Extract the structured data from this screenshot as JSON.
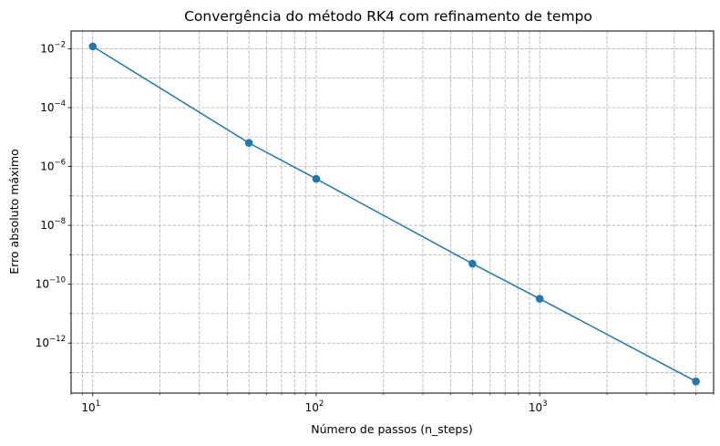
{
  "chart_data": {
    "type": "line",
    "title": "Convergência do método RK4 com refinamento de tempo",
    "xlabel": "Número de passos (n_steps)",
    "ylabel": "Erro absoluto máximo",
    "x_scale": "log",
    "y_scale": "log",
    "xlim": [
      8,
      6000
    ],
    "ylim": [
      2e-14,
      0.04
    ],
    "grid": true,
    "grid_which": "both",
    "grid_style": "dashed",
    "legend": "none",
    "x_ticks": [
      {
        "value": 10,
        "base": "10",
        "exp": "1"
      },
      {
        "value": 100,
        "base": "10",
        "exp": "2"
      },
      {
        "value": 1000,
        "base": "10",
        "exp": "3"
      }
    ],
    "y_ticks": [
      {
        "value": 0.01,
        "base": "10",
        "exp": "−2"
      },
      {
        "value": 0.0001,
        "base": "10",
        "exp": "−4"
      },
      {
        "value": 1e-06,
        "base": "10",
        "exp": "−6"
      },
      {
        "value": 1e-08,
        "base": "10",
        "exp": "−8"
      },
      {
        "value": 1e-10,
        "base": "10",
        "exp": "−10"
      },
      {
        "value": 1e-12,
        "base": "10",
        "exp": "−12"
      }
    ],
    "series": [
      {
        "color": "#1f77b4",
        "marker": "circle",
        "x": [
          10,
          50,
          100,
          500,
          1000,
          5000
        ],
        "y": [
          0.012,
          6.3e-06,
          3.8e-07,
          5e-10,
          3.2e-11,
          5e-14
        ]
      }
    ]
  }
}
